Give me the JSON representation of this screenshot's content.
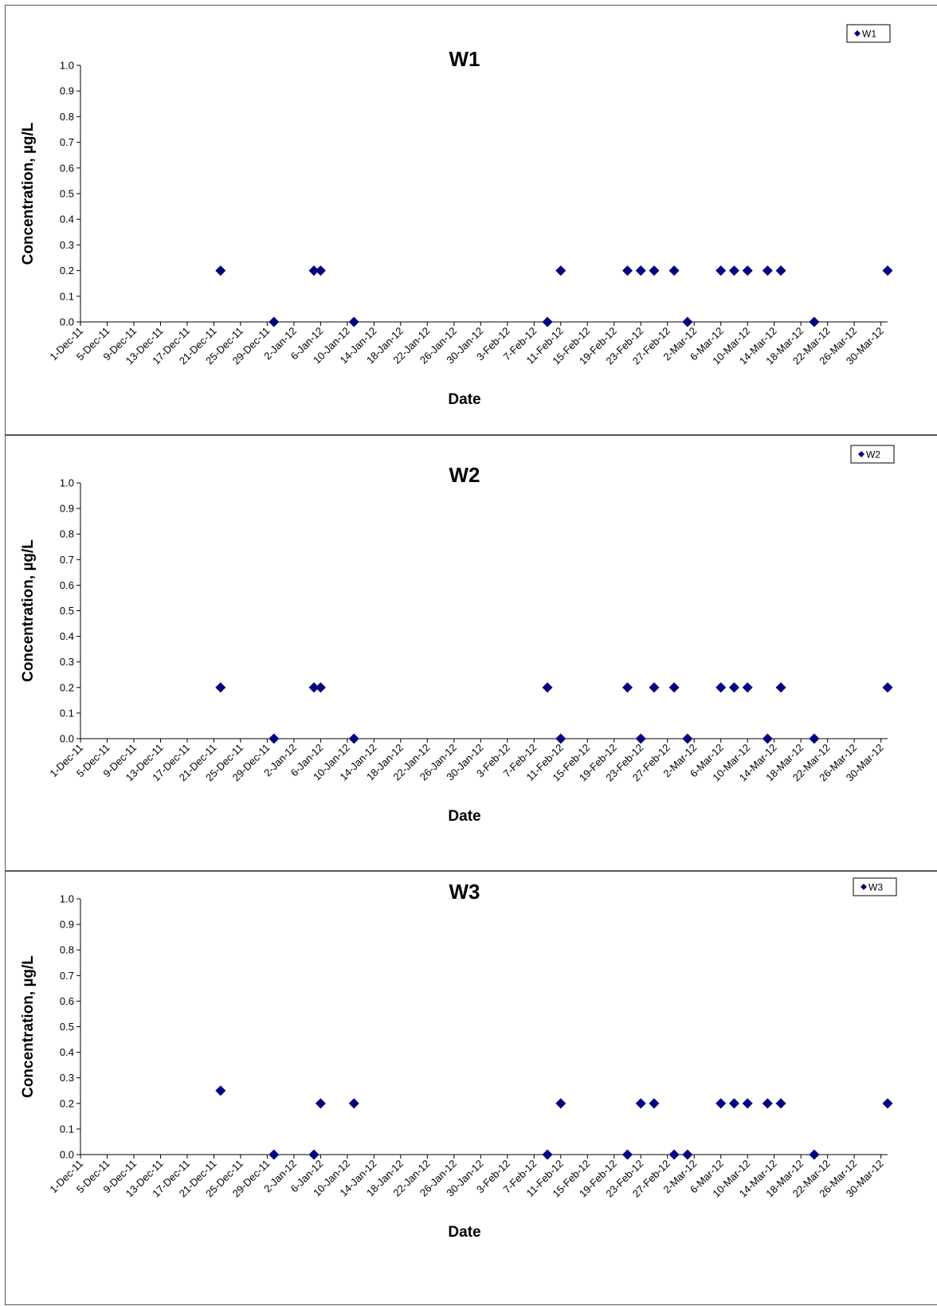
{
  "chart_data": [
    {
      "type": "scatter",
      "title": "W1",
      "xlabel": "Date",
      "ylabel": "Concentration, µg/L",
      "ylim": [
        0,
        1.0
      ],
      "xlim": [
        "1-Dec-11",
        "31-Mar-12"
      ],
      "y_ticks": [
        "0.0",
        "0.1",
        "0.2",
        "0.3",
        "0.4",
        "0.5",
        "0.6",
        "0.7",
        "0.8",
        "0.9",
        "1.0"
      ],
      "x_ticks": [
        "1-Dec-11",
        "5-Dec-11",
        "9-Dec-11",
        "13-Dec-11",
        "17-Dec-11",
        "21-Dec-11",
        "25-Dec-11",
        "29-Dec-11",
        "2-Jan-12",
        "6-Jan-12",
        "10-Jan-12",
        "14-Jan-12",
        "18-Jan-12",
        "22-Jan-12",
        "26-Jan-12",
        "30-Jan-12",
        "3-Feb-12",
        "7-Feb-12",
        "11-Feb-12",
        "15-Feb-12",
        "19-Feb-12",
        "23-Feb-12",
        "27-Feb-12",
        "2-Mar-12",
        "6-Mar-12",
        "10-Mar-12",
        "14-Mar-12",
        "18-Mar-12",
        "22-Mar-12",
        "26-Mar-12",
        "30-Mar-12"
      ],
      "grid": false,
      "legend_position": "top-right",
      "series": [
        {
          "name": "W1",
          "color": "#000080",
          "marker": "diamond",
          "points": [
            {
              "x": "22-Dec-11",
              "y": 0.2
            },
            {
              "x": "30-Dec-11",
              "y": 0.0
            },
            {
              "x": "5-Jan-12",
              "y": 0.2
            },
            {
              "x": "6-Jan-12",
              "y": 0.2
            },
            {
              "x": "11-Jan-12",
              "y": 0.0
            },
            {
              "x": "9-Feb-12",
              "y": 0.0
            },
            {
              "x": "11-Feb-12",
              "y": 0.2
            },
            {
              "x": "21-Feb-12",
              "y": 0.2
            },
            {
              "x": "23-Feb-12",
              "y": 0.2
            },
            {
              "x": "25-Feb-12",
              "y": 0.2
            },
            {
              "x": "28-Feb-12",
              "y": 0.2
            },
            {
              "x": "1-Mar-12",
              "y": 0.0
            },
            {
              "x": "6-Mar-12",
              "y": 0.2
            },
            {
              "x": "8-Mar-12",
              "y": 0.2
            },
            {
              "x": "10-Mar-12",
              "y": 0.2
            },
            {
              "x": "13-Mar-12",
              "y": 0.2
            },
            {
              "x": "15-Mar-12",
              "y": 0.2
            },
            {
              "x": "20-Mar-12",
              "y": 0.0
            },
            {
              "x": "31-Mar-12",
              "y": 0.2
            }
          ]
        }
      ]
    },
    {
      "type": "scatter",
      "title": "W2",
      "xlabel": "Date",
      "ylabel": "Concentration, µg/L",
      "ylim": [
        0,
        1.0
      ],
      "xlim": [
        "1-Dec-11",
        "31-Mar-12"
      ],
      "y_ticks": [
        "0.0",
        "0.1",
        "0.2",
        "0.3",
        "0.4",
        "0.5",
        "0.6",
        "0.7",
        "0.8",
        "0.9",
        "1.0"
      ],
      "x_ticks": [
        "1-Dec-11",
        "5-Dec-11",
        "9-Dec-11",
        "13-Dec-11",
        "17-Dec-11",
        "21-Dec-11",
        "25-Dec-11",
        "29-Dec-11",
        "2-Jan-12",
        "6-Jan-12",
        "10-Jan-12",
        "14-Jan-12",
        "18-Jan-12",
        "22-Jan-12",
        "26-Jan-12",
        "30-Jan-12",
        "3-Feb-12",
        "7-Feb-12",
        "11-Feb-12",
        "15-Feb-12",
        "19-Feb-12",
        "23-Feb-12",
        "27-Feb-12",
        "2-Mar-12",
        "6-Mar-12",
        "10-Mar-12",
        "14-Mar-12",
        "18-Mar-12",
        "22-Mar-12",
        "26-Mar-12",
        "30-Mar-12"
      ],
      "grid": false,
      "legend_position": "top-right",
      "series": [
        {
          "name": "W2",
          "color": "#000080",
          "marker": "diamond",
          "points": [
            {
              "x": "22-Dec-11",
              "y": 0.2
            },
            {
              "x": "30-Dec-11",
              "y": 0.0
            },
            {
              "x": "5-Jan-12",
              "y": 0.2
            },
            {
              "x": "6-Jan-12",
              "y": 0.2
            },
            {
              "x": "11-Jan-12",
              "y": 0.0
            },
            {
              "x": "9-Feb-12",
              "y": 0.2
            },
            {
              "x": "11-Feb-12",
              "y": 0.0
            },
            {
              "x": "21-Feb-12",
              "y": 0.2
            },
            {
              "x": "23-Feb-12",
              "y": 0.0
            },
            {
              "x": "25-Feb-12",
              "y": 0.2
            },
            {
              "x": "28-Feb-12",
              "y": 0.2
            },
            {
              "x": "1-Mar-12",
              "y": 0.0
            },
            {
              "x": "6-Mar-12",
              "y": 0.2
            },
            {
              "x": "8-Mar-12",
              "y": 0.2
            },
            {
              "x": "10-Mar-12",
              "y": 0.2
            },
            {
              "x": "13-Mar-12",
              "y": 0.0
            },
            {
              "x": "15-Mar-12",
              "y": 0.2
            },
            {
              "x": "20-Mar-12",
              "y": 0.0
            },
            {
              "x": "31-Mar-12",
              "y": 0.2
            }
          ]
        }
      ]
    },
    {
      "type": "scatter",
      "title": "W3",
      "xlabel": "Date",
      "ylabel": "Concentration, µg/L",
      "ylim": [
        0,
        1.0
      ],
      "xlim": [
        "1-Dec-11",
        "31-Mar-12"
      ],
      "y_ticks": [
        "0.0",
        "0.1",
        "0.2",
        "0.3",
        "0.4",
        "0.5",
        "0.6",
        "0.7",
        "0.8",
        "0.9",
        "1.0"
      ],
      "x_ticks": [
        "1-Dec-11",
        "5-Dec-11",
        "9-Dec-11",
        "13-Dec-11",
        "17-Dec-11",
        "21-Dec-11",
        "25-Dec-11",
        "29-Dec-11",
        "2-Jan-12",
        "6-Jan-12",
        "10-Jan-12",
        "14-Jan-12",
        "18-Jan-12",
        "22-Jan-12",
        "26-Jan-12",
        "30-Jan-12",
        "3-Feb-12",
        "7-Feb-12",
        "11-Feb-12",
        "15-Feb-12",
        "19-Feb-12",
        "23-Feb-12",
        "27-Feb-12",
        "2-Mar-12",
        "6-Mar-12",
        "10-Mar-12",
        "14-Mar-12",
        "18-Mar-12",
        "22-Mar-12",
        "26-Mar-12",
        "30-Mar-12"
      ],
      "grid": false,
      "legend_position": "top-right",
      "series": [
        {
          "name": "W3",
          "color": "#000080",
          "marker": "diamond",
          "points": [
            {
              "x": "22-Dec-11",
              "y": 0.25
            },
            {
              "x": "30-Dec-11",
              "y": 0.0
            },
            {
              "x": "5-Jan-12",
              "y": 0.0
            },
            {
              "x": "6-Jan-12",
              "y": 0.2
            },
            {
              "x": "11-Jan-12",
              "y": 0.2
            },
            {
              "x": "9-Feb-12",
              "y": 0.0
            },
            {
              "x": "11-Feb-12",
              "y": 0.2
            },
            {
              "x": "21-Feb-12",
              "y": 0.0
            },
            {
              "x": "23-Feb-12",
              "y": 0.2
            },
            {
              "x": "25-Feb-12",
              "y": 0.2
            },
            {
              "x": "28-Feb-12",
              "y": 0.0
            },
            {
              "x": "1-Mar-12",
              "y": 0.0
            },
            {
              "x": "6-Mar-12",
              "y": 0.2
            },
            {
              "x": "8-Mar-12",
              "y": 0.2
            },
            {
              "x": "10-Mar-12",
              "y": 0.2
            },
            {
              "x": "13-Mar-12",
              "y": 0.2
            },
            {
              "x": "15-Mar-12",
              "y": 0.2
            },
            {
              "x": "20-Mar-12",
              "y": 0.0
            },
            {
              "x": "31-Mar-12",
              "y": 0.2
            }
          ]
        }
      ]
    }
  ]
}
